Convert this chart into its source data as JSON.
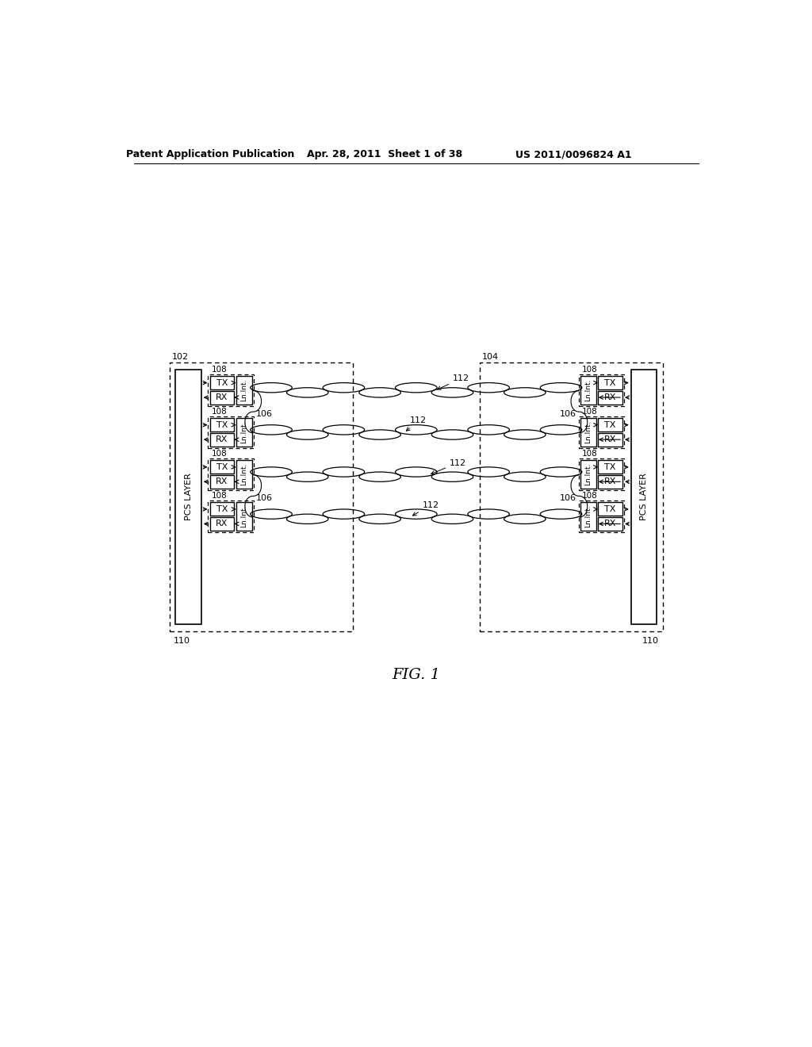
{
  "bg_color": "#ffffff",
  "header_left": "Patent Application Publication",
  "header_mid": "Apr. 28, 2011  Sheet 1 of 38",
  "header_right": "US 2011/0096824 A1",
  "fig_label": "FIG. 1",
  "label_102": "102",
  "label_104": "104",
  "label_106": "106",
  "label_108": "108",
  "label_110": "110",
  "label_112": "112",
  "pcs_layer": "PCS LAYER",
  "ln_int": "Ln.Int.",
  "tx": "TX",
  "rx": "RX"
}
